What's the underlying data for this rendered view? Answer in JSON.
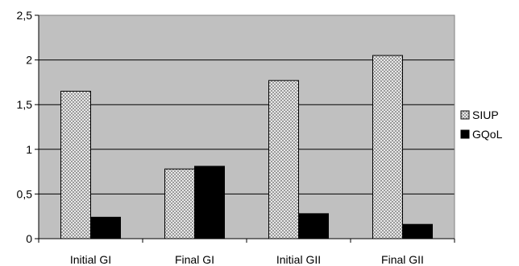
{
  "chart_data": {
    "type": "bar",
    "categories": [
      "Initial GI",
      "Final GI",
      "Initial GII",
      "Final GII"
    ],
    "series": [
      {
        "name": "SIUP",
        "values": [
          1.65,
          0.78,
          1.77,
          2.05
        ],
        "color": "#c8c8c8",
        "pattern": "checkered"
      },
      {
        "name": "GQoL",
        "values": [
          0.24,
          0.81,
          0.28,
          0.16
        ],
        "color": "#000000"
      }
    ],
    "y_ticks": [
      "0",
      "0,5",
      "1",
      "1,5",
      "2",
      "2,5"
    ],
    "y_tick_values": [
      0,
      0.5,
      1,
      1.5,
      2,
      2.5
    ],
    "ylim": [
      0,
      2.5
    ],
    "grid": true,
    "plot_background": "#c0c0c0",
    "legend_placement": "right"
  }
}
